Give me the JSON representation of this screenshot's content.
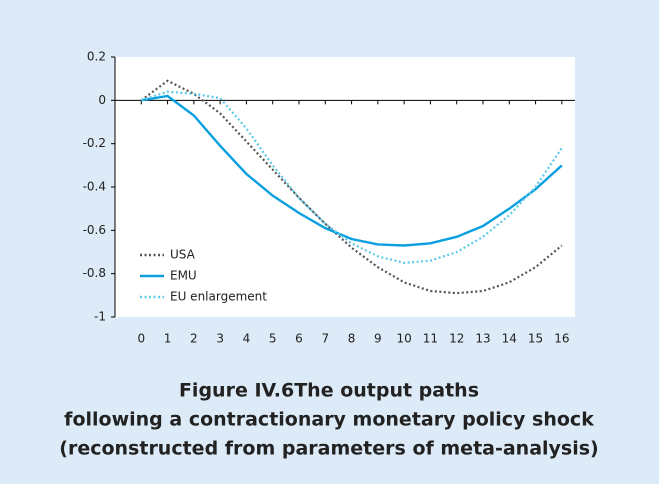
{
  "chart_data": {
    "type": "line",
    "title": "Figure IV.6The output paths",
    "subtitle": [
      "following a contractionary monetary policy shock",
      "(reconstructed from parameters of meta-analysis)"
    ],
    "x": [
      0,
      1,
      2,
      3,
      4,
      5,
      6,
      7,
      8,
      9,
      10,
      11,
      12,
      13,
      14,
      15,
      16
    ],
    "series": [
      {
        "name": "USA",
        "color": "#555555",
        "style": "dotted",
        "values": [
          0,
          0.09,
          0.03,
          -0.06,
          -0.19,
          -0.32,
          -0.45,
          -0.57,
          -0.68,
          -0.77,
          -0.84,
          -0.88,
          -0.89,
          -0.88,
          -0.84,
          -0.77,
          -0.67
        ]
      },
      {
        "name": "EMU",
        "color": "#0aa0e0",
        "style": "solid",
        "values": [
          0,
          0.02,
          -0.07,
          -0.21,
          -0.34,
          -0.44,
          -0.52,
          -0.59,
          -0.64,
          -0.665,
          -0.67,
          -0.66,
          -0.63,
          -0.58,
          -0.5,
          -0.41,
          -0.3
        ]
      },
      {
        "name": "EU enlargement",
        "color": "#5cc8ea",
        "style": "dotted",
        "values": [
          0,
          0.04,
          0.03,
          0.01,
          -0.13,
          -0.3,
          -0.45,
          -0.57,
          -0.66,
          -0.72,
          -0.75,
          -0.74,
          -0.7,
          -0.63,
          -0.53,
          -0.4,
          -0.22
        ]
      }
    ],
    "xlim": [
      -1,
      16.5
    ],
    "xticks": [
      0,
      1,
      2,
      3,
      4,
      5,
      6,
      7,
      8,
      9,
      10,
      11,
      12,
      13,
      14,
      15,
      16
    ],
    "ylim": [
      -1,
      0.2
    ],
    "yticks": [
      0.2,
      0,
      -0.2,
      -0.4,
      -0.6,
      -0.8,
      -1
    ],
    "grid": false,
    "legend": "lower-left"
  }
}
